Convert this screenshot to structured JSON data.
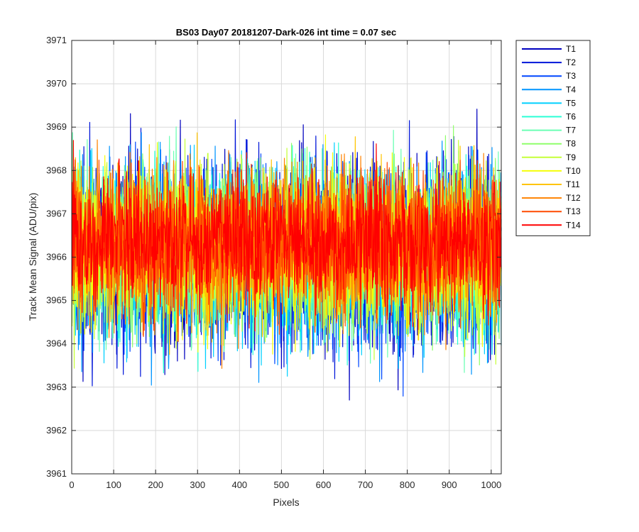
{
  "chart_data": {
    "type": "line",
    "title": "BS03 Day07 20181207-Dark-026 int time = 0.07 sec",
    "xlabel": "Pixels",
    "ylabel": "Track Mean Signal (ADU/pix)",
    "xlim": [
      0,
      1024
    ],
    "ylim": [
      3961,
      3971
    ],
    "xticks": [
      0,
      100,
      200,
      300,
      400,
      500,
      600,
      700,
      800,
      900,
      1000
    ],
    "yticks": [
      3961,
      3962,
      3963,
      3964,
      3965,
      3966,
      3967,
      3968,
      3969,
      3970,
      3971
    ],
    "grid": true,
    "legend_position": "outside-top-right",
    "n_points": 1024,
    "series": [
      {
        "name": "T1",
        "color": "#0000bf",
        "mean": 3966.0,
        "spread": 1.6,
        "seed": 11
      },
      {
        "name": "T2",
        "color": "#0015d9",
        "mean": 3966.0,
        "spread": 1.55,
        "seed": 23
      },
      {
        "name": "T3",
        "color": "#0047ff",
        "mean": 3966.05,
        "spread": 1.5,
        "seed": 37
      },
      {
        "name": "T4",
        "color": "#0095ff",
        "mean": 3966.05,
        "spread": 1.45,
        "seed": 41
      },
      {
        "name": "T5",
        "color": "#00d0ff",
        "mean": 3966.1,
        "spread": 1.45,
        "seed": 53
      },
      {
        "name": "T6",
        "color": "#29ffd6",
        "mean": 3966.1,
        "spread": 1.4,
        "seed": 67
      },
      {
        "name": "T7",
        "color": "#6bffb4",
        "mean": 3966.15,
        "spread": 1.4,
        "seed": 71
      },
      {
        "name": "T8",
        "color": "#8fff6b",
        "mean": 3966.2,
        "spread": 1.35,
        "seed": 89
      },
      {
        "name": "T9",
        "color": "#c5ff38",
        "mean": 3966.2,
        "spread": 1.35,
        "seed": 97
      },
      {
        "name": "T10",
        "color": "#f5ff0a",
        "mean": 3966.25,
        "spread": 1.3,
        "seed": 101
      },
      {
        "name": "T11",
        "color": "#ffc400",
        "mean": 3966.25,
        "spread": 1.3,
        "seed": 113
      },
      {
        "name": "T12",
        "color": "#ff8200",
        "mean": 3966.3,
        "spread": 1.25,
        "seed": 127
      },
      {
        "name": "T13",
        "color": "#ff4a00",
        "mean": 3966.3,
        "spread": 1.2,
        "seed": 131
      },
      {
        "name": "T14",
        "color": "#ff0000",
        "mean": 3966.35,
        "spread": 1.1,
        "seed": 149
      }
    ]
  }
}
